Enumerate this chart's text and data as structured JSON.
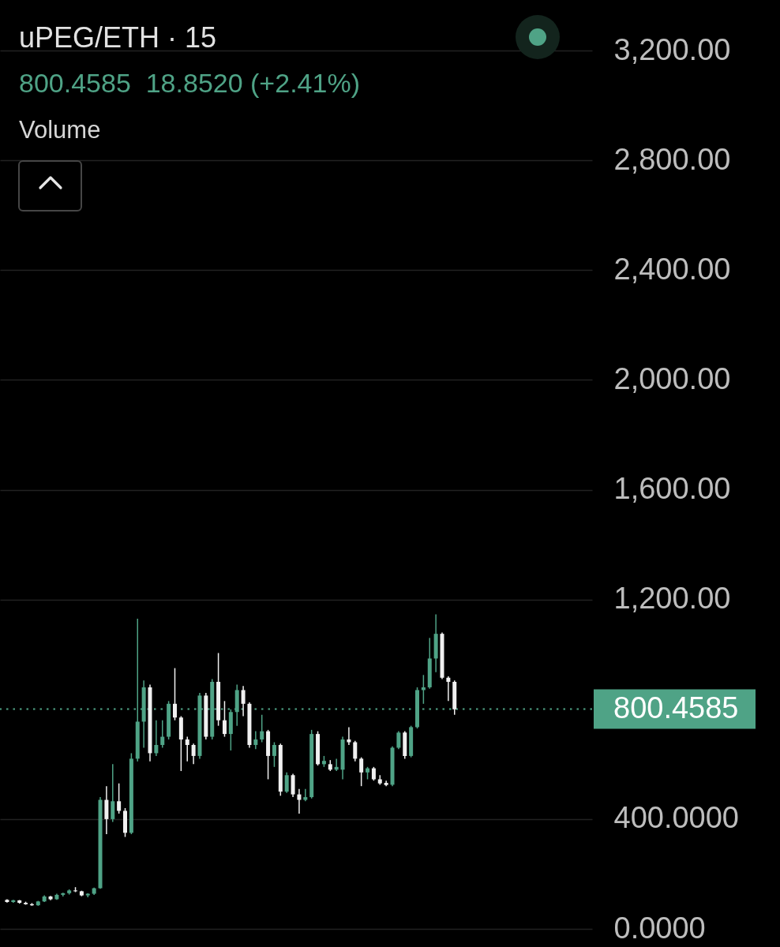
{
  "chart_data": {
    "type": "candlestick",
    "title": "uPEG/ETH · 15",
    "subtitle": "800.4585  18.8520 (+2.41%)",
    "annotations": [
      "Volume"
    ],
    "categories": [
      null,
      null,
      null,
      null,
      null,
      null,
      null,
      null,
      null,
      null,
      null,
      null,
      null,
      null,
      null,
      null,
      null,
      null,
      null,
      null,
      null,
      null,
      null,
      null,
      null,
      null,
      null,
      null,
      null,
      null,
      null,
      null,
      null,
      null,
      null,
      null,
      null,
      null,
      null,
      null,
      null,
      null,
      null,
      null,
      null,
      null,
      null,
      null,
      null,
      null,
      null,
      null,
      null,
      null,
      null,
      null,
      null,
      null,
      null,
      null,
      null,
      null,
      null,
      null,
      null,
      null,
      null,
      null,
      null,
      null,
      null,
      null,
      null,
      null,
      null,
      null,
      null,
      null,
      null,
      null,
      null,
      null,
      null,
      null,
      null,
      null,
      null,
      null,
      null,
      null,
      null,
      null,
      null,
      null
    ],
    "ohlc": [
      [
        106,
        108,
        96,
        98
      ],
      [
        98,
        106,
        95,
        104
      ],
      [
        104,
        105,
        92,
        95
      ],
      [
        95,
        99,
        88,
        90
      ],
      [
        90,
        94,
        84,
        86
      ],
      [
        86,
        102,
        84,
        100
      ],
      [
        100,
        122,
        98,
        118
      ],
      [
        118,
        120,
        104,
        108
      ],
      [
        108,
        128,
        106,
        124
      ],
      [
        124,
        132,
        118,
        130
      ],
      [
        130,
        144,
        125,
        140
      ],
      [
        140,
        152,
        134,
        137
      ],
      [
        137,
        139,
        119,
        122
      ],
      [
        122,
        130,
        115,
        128
      ],
      [
        128,
        150,
        124,
        148
      ],
      [
        148,
        480,
        146,
        470
      ],
      [
        470,
        520,
        345,
        400
      ],
      [
        400,
        600,
        390,
        465
      ],
      [
        465,
        530,
        420,
        430
      ],
      [
        430,
        440,
        335,
        350
      ],
      [
        350,
        640,
        345,
        620
      ],
      [
        620,
        1130,
        610,
        755
      ],
      [
        755,
        905,
        660,
        880
      ],
      [
        880,
        890,
        610,
        640
      ],
      [
        640,
        760,
        630,
        670
      ],
      [
        670,
        760,
        660,
        700
      ],
      [
        700,
        830,
        690,
        820
      ],
      [
        820,
        950,
        760,
        770
      ],
      [
        770,
        775,
        575,
        690
      ],
      [
        690,
        700,
        610,
        670
      ],
      [
        670,
        675,
        600,
        630
      ],
      [
        630,
        860,
        620,
        850
      ],
      [
        850,
        860,
        690,
        700
      ],
      [
        700,
        910,
        690,
        900
      ],
      [
        900,
        1005,
        740,
        760
      ],
      [
        760,
        830,
        700,
        710
      ],
      [
        710,
        800,
        650,
        790
      ],
      [
        790,
        890,
        740,
        870
      ],
      [
        870,
        885,
        775,
        820
      ],
      [
        820,
        825,
        660,
        670
      ],
      [
        670,
        720,
        655,
        690
      ],
      [
        690,
        780,
        680,
        720
      ],
      [
        720,
        725,
        545,
        630
      ],
      [
        630,
        680,
        590,
        670
      ],
      [
        670,
        675,
        485,
        500
      ],
      [
        500,
        570,
        495,
        560
      ],
      [
        560,
        565,
        480,
        490
      ],
      [
        490,
        510,
        420,
        470
      ],
      [
        470,
        510,
        465,
        480
      ],
      [
        480,
        725,
        475,
        710
      ],
      [
        710,
        720,
        595,
        600
      ],
      [
        600,
        630,
        590,
        612
      ],
      [
        600,
        615,
        575,
        580
      ],
      [
        580,
        620,
        575,
        590
      ],
      [
        580,
        700,
        545,
        690
      ],
      [
        690,
        735,
        670,
        680
      ],
      [
        680,
        685,
        610,
        620
      ],
      [
        620,
        625,
        520,
        570
      ],
      [
        570,
        590,
        545,
        585
      ],
      [
        585,
        590,
        540,
        545
      ],
      [
        545,
        560,
        525,
        530
      ],
      [
        532,
        540,
        520,
        524
      ],
      [
        525,
        665,
        520,
        660
      ],
      [
        660,
        720,
        655,
        715
      ],
      [
        715,
        720,
        620,
        630
      ],
      [
        630,
        740,
        625,
        735
      ],
      [
        735,
        880,
        730,
        870
      ],
      [
        870,
        925,
        820,
        880
      ],
      [
        880,
        1060,
        875,
        985
      ],
      [
        985,
        1146,
        935,
        1075
      ],
      [
        1075,
        1080,
        910,
        915
      ],
      [
        915,
        920,
        830,
        900
      ],
      [
        900,
        905,
        780,
        800
      ],
      null,
      null,
      null,
      null,
      null,
      null,
      null,
      null,
      null,
      null,
      null,
      null,
      null,
      null,
      null,
      null,
      null,
      null,
      null,
      null,
      null
    ],
    "colors": [
      "#f0f0f0",
      "#4fa386",
      "#f0f0f0",
      "#f0f0f0",
      "#f0f0f0",
      "#4fa386",
      "#4fa386",
      "#f0f0f0",
      "#4fa386",
      "#4fa386",
      "#4fa386",
      "#f0f0f0",
      "#f0f0f0",
      "#4fa386",
      "#4fa386",
      "#4fa386",
      "#f0f0f0",
      "#4fa386",
      "#f0f0f0",
      "#f0f0f0",
      "#4fa386",
      "#4fa386",
      "#4fa386",
      "#f0f0f0",
      "#4fa386",
      "#4fa386",
      "#4fa386",
      "#f0f0f0",
      "#f0f0f0",
      "#f0f0f0",
      "#f0f0f0",
      "#4fa386",
      "#f0f0f0",
      "#4fa386",
      "#f0f0f0",
      "#f0f0f0",
      "#4fa386",
      "#4fa386",
      "#f0f0f0",
      "#f0f0f0",
      "#4fa386",
      "#4fa386",
      "#f0f0f0",
      "#4fa386",
      "#f0f0f0",
      "#4fa386",
      "#f0f0f0",
      "#f0f0f0",
      "#4fa386",
      "#4fa386",
      "#f0f0f0",
      "#4fa386",
      "#f0f0f0",
      "#4fa386",
      "#4fa386",
      "#f0f0f0",
      "#f0f0f0",
      "#f0f0f0",
      "#4fa386",
      "#f0f0f0",
      "#f0f0f0",
      "#f0f0f0",
      "#4fa386",
      "#4fa386",
      "#f0f0f0",
      "#4fa386",
      "#4fa386",
      "#4fa386",
      "#4fa386",
      "#4fa386",
      "#f0f0f0",
      "#f0f0f0",
      "#f0f0f0",
      null,
      null,
      null,
      null,
      null,
      null,
      null,
      null,
      null,
      null,
      null,
      null,
      null,
      null,
      null,
      null,
      null,
      null,
      null,
      null,
      null
    ],
    "ylim": [
      -66,
      3384
    ],
    "yticks": [
      {
        "value": 0,
        "label": "0.0000"
      },
      {
        "value": 400,
        "label": "400.0000"
      },
      {
        "value": 1200,
        "label": "1,200.00"
      },
      {
        "value": 1600,
        "label": "1,600.00"
      },
      {
        "value": 2000,
        "label": "2,000.00"
      },
      {
        "value": 2400,
        "label": "2,400.00"
      },
      {
        "value": 2800,
        "label": "2,800.00"
      },
      {
        "value": 3200,
        "label": "3,200.00"
      }
    ],
    "grid": "y",
    "tick_labels": "y",
    "ref_lines": [
      {
        "axis": "y",
        "value": 800.4585,
        "label": "800.4585",
        "color": "#4fa386",
        "line_style": "dotted"
      }
    ]
  }
}
